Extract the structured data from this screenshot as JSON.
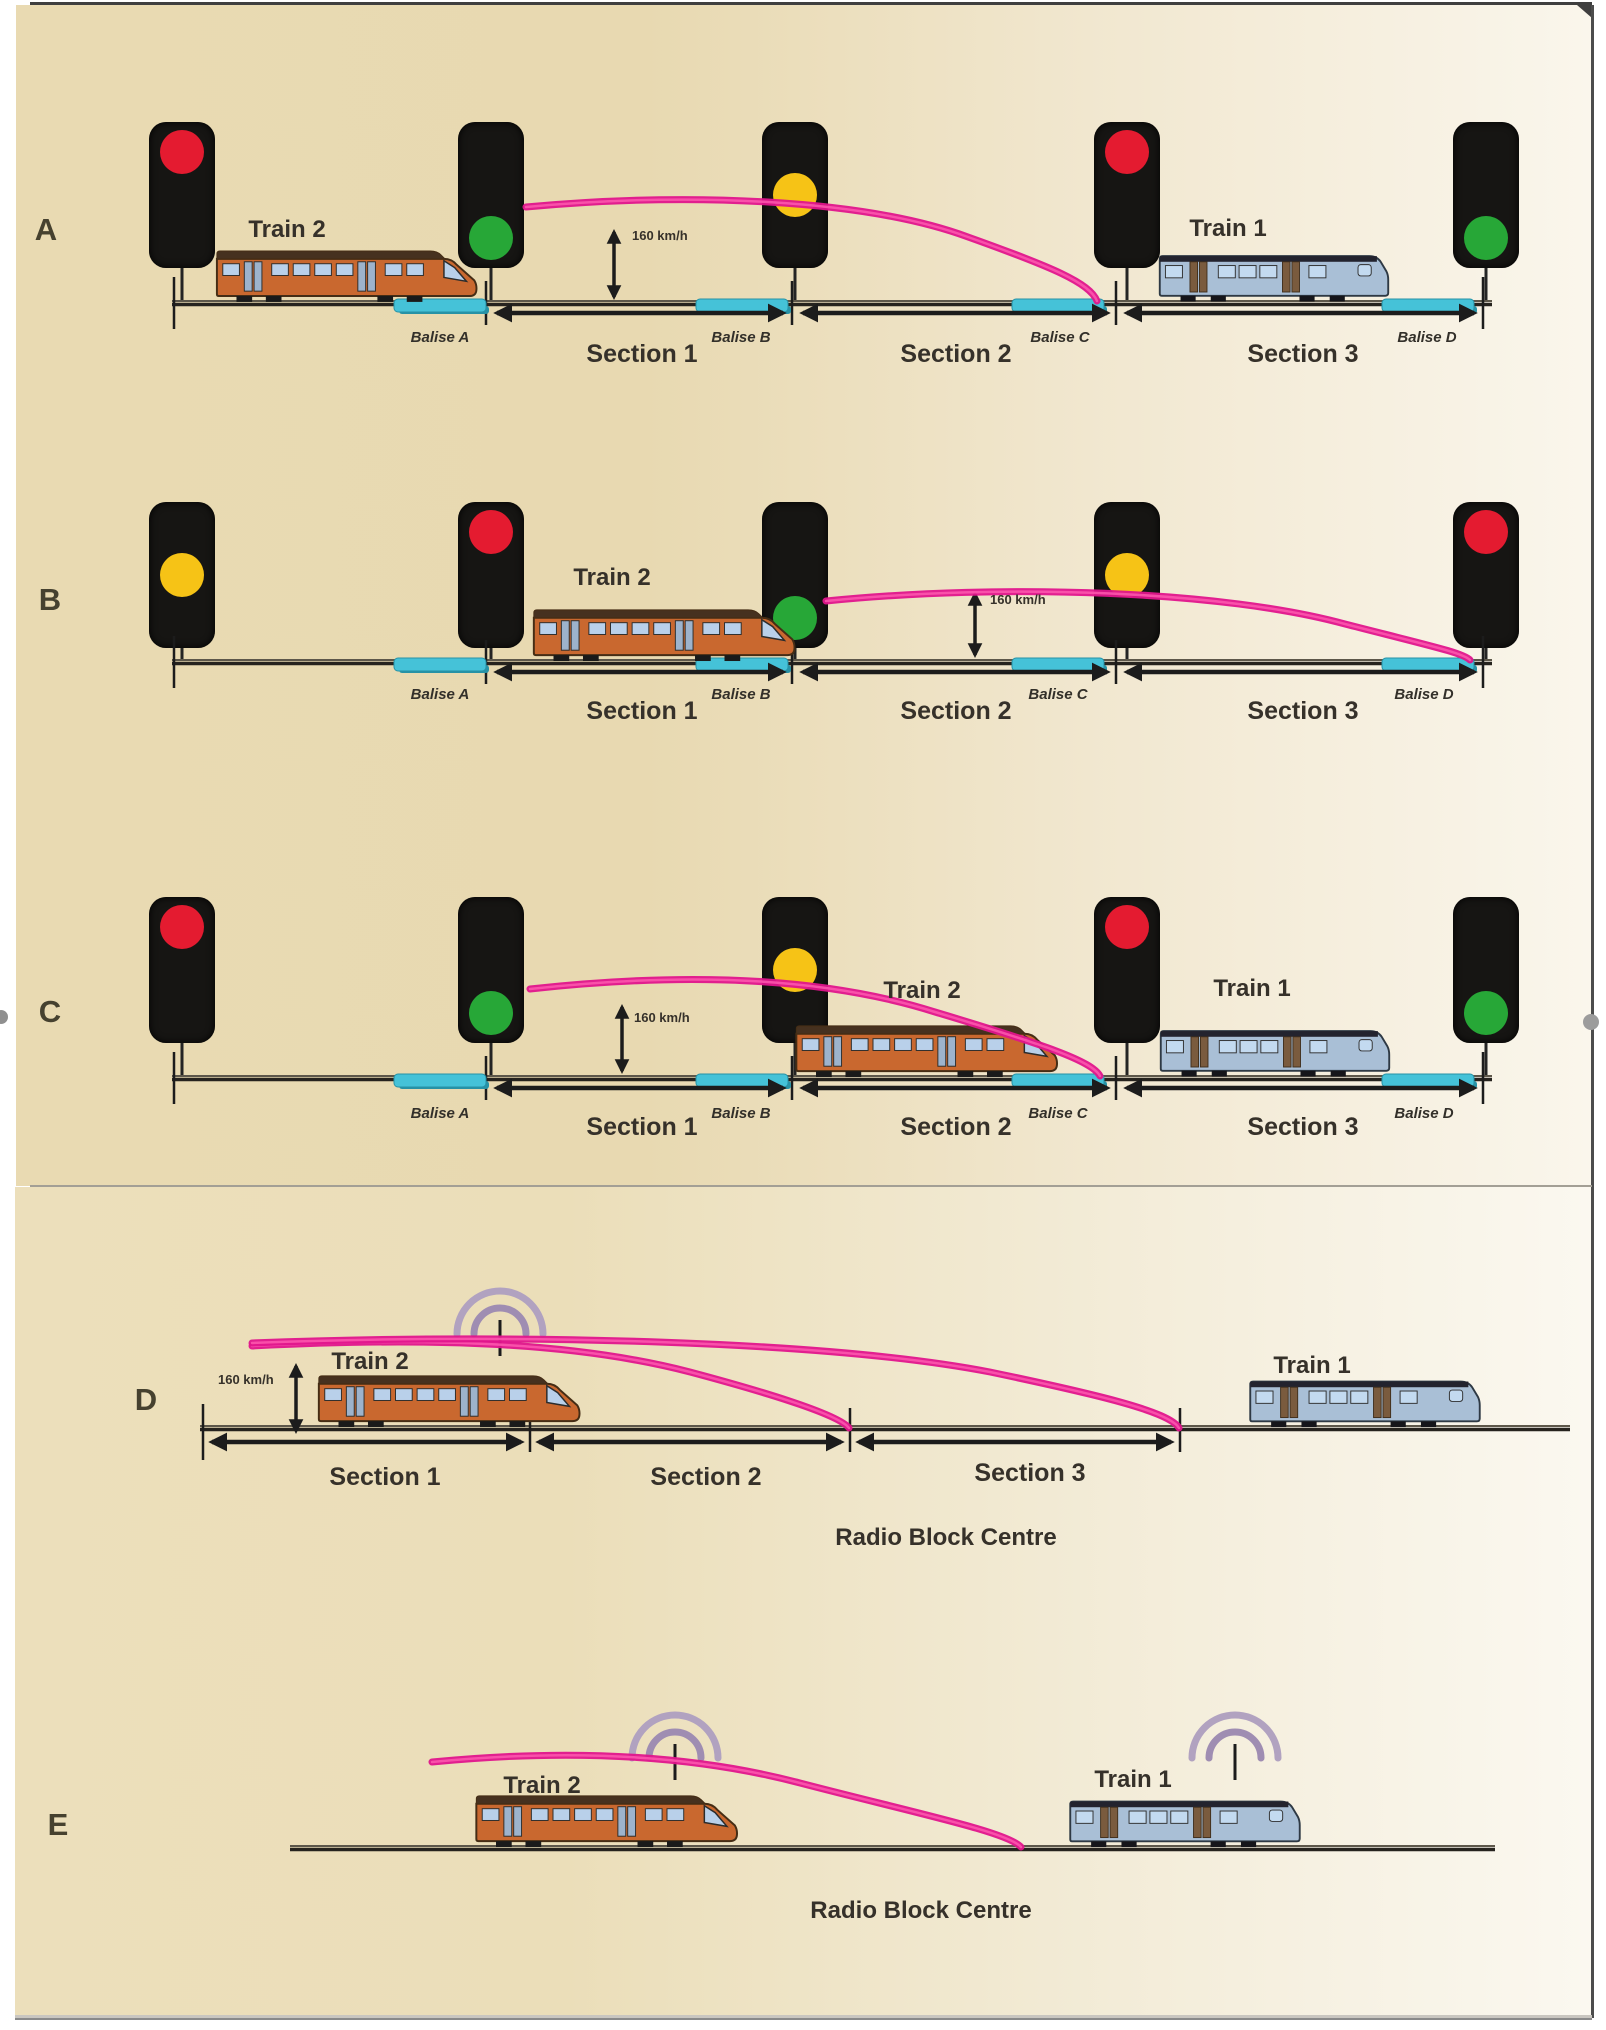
{
  "colors": {
    "red": "#e41b30",
    "yellow": "#f6c316",
    "green": "#27a737",
    "pink_curve": "#e0158c",
    "balise_cyan": "#45c2d8",
    "train2_orange": "#c9682f",
    "train1_blue": "#a9bfd6",
    "antenna_purple": "#a08bb0",
    "background_left": "#e9dab2",
    "background_right": "#faf6ec"
  },
  "text": {
    "panel_a": "A",
    "panel_b": "B",
    "panel_c": "C",
    "panel_d": "D",
    "panel_e": "E",
    "train1": "Train 1",
    "train2": "Train 2",
    "speed": "160 km/h",
    "balise_a": "Balise A",
    "balise_b": "Balise B",
    "balise_c": "Balise C",
    "balise_d": "Balise D",
    "section1": "Section 1",
    "section2": "Section 2",
    "section3": "Section 3",
    "radio_block_centre": "Radio Block Centre"
  },
  "panels": [
    {
      "label": "A",
      "signal_aspects": [
        "red",
        "green",
        "yellow",
        "red",
        "green"
      ],
      "trains_shown": [
        "Train 2",
        "Train 1"
      ],
      "balises_shown": [
        "Balise A",
        "Balise B",
        "Balise C",
        "Balise D"
      ],
      "sections_shown": [
        "Section 1",
        "Section 2",
        "Section 3"
      ],
      "speed_label": "160 km/h",
      "authority_curve": "from signal 2 down to Balise C"
    },
    {
      "label": "B",
      "signal_aspects": [
        "yellow",
        "red",
        "green",
        "yellow",
        "red"
      ],
      "trains_shown": [
        "Train 2"
      ],
      "balises_shown": [
        "Balise A",
        "Balise B",
        "Balise C",
        "Balise D"
      ],
      "sections_shown": [
        "Section 1",
        "Section 2",
        "Section 3"
      ],
      "speed_label": "160 km/h",
      "authority_curve": "from signal 3 down to Balise D"
    },
    {
      "label": "C",
      "signal_aspects": [
        "red",
        "green",
        "yellow",
        "red",
        "green"
      ],
      "trains_shown": [
        "Train 2",
        "Train 1"
      ],
      "balises_shown": [
        "Balise A",
        "Balise B",
        "Balise C",
        "Balise D"
      ],
      "sections_shown": [
        "Section 1",
        "Section 2",
        "Section 3"
      ],
      "speed_label": "160 km/h",
      "authority_curve": "from signal 2 over Train 2 down to Balise C"
    },
    {
      "label": "D",
      "signal_aspects": [],
      "trains_shown": [
        "Train 2",
        "Train 1"
      ],
      "sections_shown": [
        "Section 1",
        "Section 2",
        "Section 3"
      ],
      "speed_label": "160 km/h",
      "radio_block_centre": "Radio Block Centre",
      "antennas": 1,
      "authority_curves": [
        "to end of Section 2",
        "to end of Section 3"
      ]
    },
    {
      "label": "E",
      "signal_aspects": [],
      "trains_shown": [
        "Train 2",
        "Train 1"
      ],
      "radio_block_centre": "Radio Block Centre",
      "antennas": 2,
      "authority_curves": [
        "to rear of Train 1"
      ]
    }
  ]
}
